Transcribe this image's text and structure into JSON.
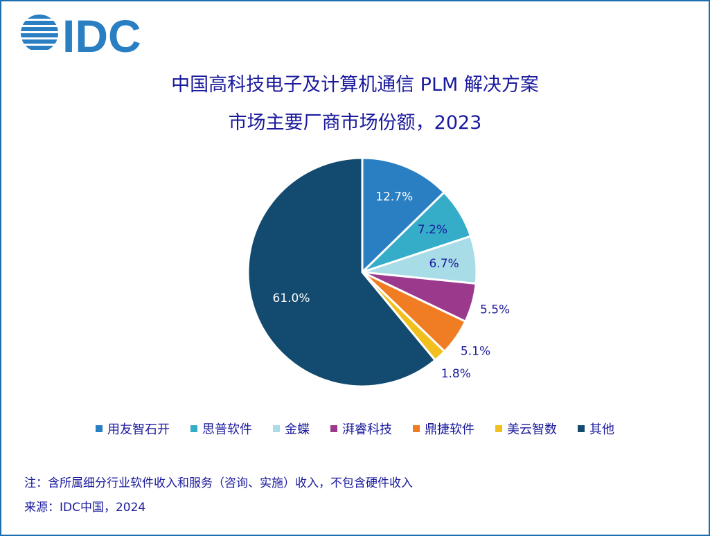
{
  "logo": {
    "text": "IDC",
    "color": "#2a7ec2"
  },
  "title": {
    "line1": "中国高科技电子及计算机通信 PLM 解决方案",
    "line2": "市场主要厂商市场份额，2023"
  },
  "chart_data": {
    "type": "pie",
    "title": "中国高科技电子及计算机通信 PLM 解决方案 市场主要厂商市场份额，2023",
    "start_angle": "12 o'clock",
    "direction": "clockwise",
    "legend_position": "bottom",
    "slices": [
      {
        "name": "用友智石开",
        "value": 12.7,
        "label": "12.7%",
        "color": "#2a7ec2"
      },
      {
        "name": "思普软件",
        "value": 7.2,
        "label": "7.2%",
        "color": "#35adc9"
      },
      {
        "name": "金蝶",
        "value": 6.7,
        "label": "6.7%",
        "color": "#a8dce7"
      },
      {
        "name": "湃睿科技",
        "value": 5.5,
        "label": "5.5%",
        "color": "#9b3a8d"
      },
      {
        "name": "鼎捷软件",
        "value": 5.1,
        "label": "5.1%",
        "color": "#f07d23"
      },
      {
        "name": "美云智数",
        "value": 1.8,
        "label": "1.8%",
        "color": "#f2c01e"
      },
      {
        "name": "其他",
        "value": 61.0,
        "label": "61.0%",
        "color": "#134a6f"
      }
    ]
  },
  "notes": {
    "note": "注：含所属细分行业软件收入和服务（咨询、实施）收入，不包含硬件收入",
    "source": "来源：IDC中国，2024"
  }
}
